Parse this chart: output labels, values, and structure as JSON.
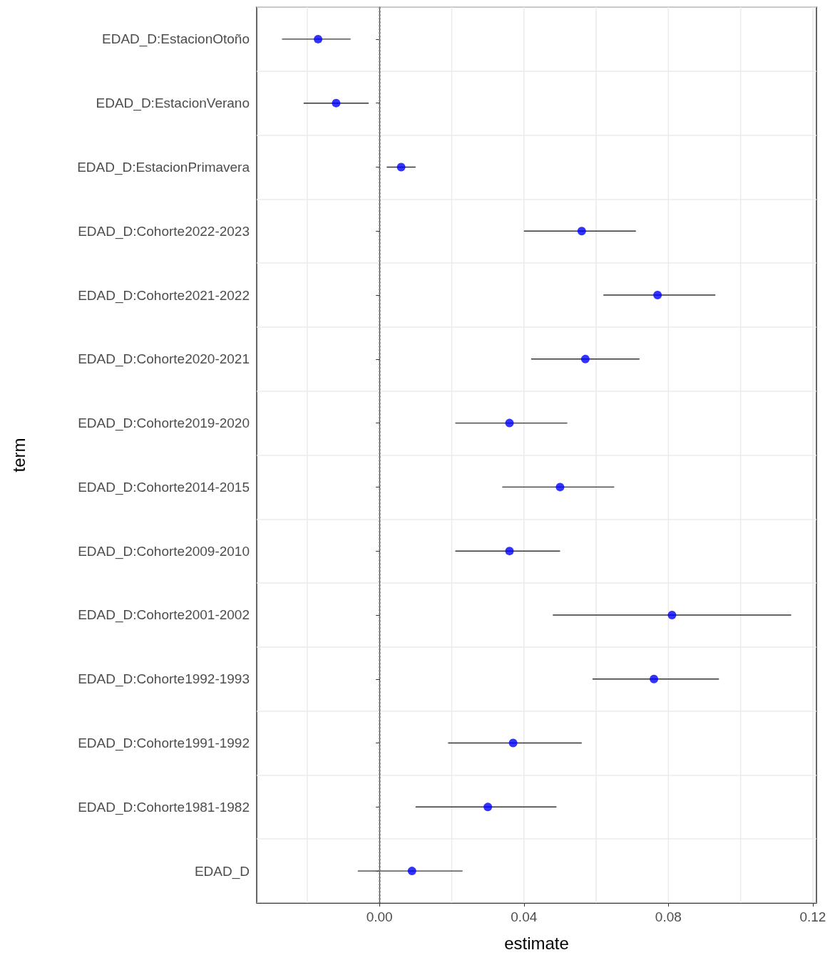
{
  "chart_data": {
    "type": "scatter",
    "orientation": "horizontal",
    "xlabel": "estimate",
    "ylabel": "term",
    "categories": [
      "EDAD_D:EstacionOtoño",
      "EDAD_D:EstacionVerano",
      "EDAD_D:EstacionPrimavera",
      "EDAD_D:Cohorte2022-2023",
      "EDAD_D:Cohorte2021-2022",
      "EDAD_D:Cohorte2020-2021",
      "EDAD_D:Cohorte2019-2020",
      "EDAD_D:Cohorte2014-2015",
      "EDAD_D:Cohorte2009-2010",
      "EDAD_D:Cohorte2001-2002",
      "EDAD_D:Cohorte1992-1993",
      "EDAD_D:Cohorte1991-1992",
      "EDAD_D:Cohorte1981-1982",
      "EDAD_D"
    ],
    "values": [
      -0.017,
      -0.012,
      0.006,
      0.056,
      0.077,
      0.057,
      0.036,
      0.05,
      0.036,
      0.081,
      0.076,
      0.037,
      0.03,
      0.009
    ],
    "errors": [
      [
        -0.027,
        -0.008
      ],
      [
        -0.021,
        -0.003
      ],
      [
        0.002,
        0.01
      ],
      [
        0.04,
        0.071
      ],
      [
        0.062,
        0.093
      ],
      [
        0.042,
        0.072
      ],
      [
        0.021,
        0.052
      ],
      [
        0.034,
        0.065
      ],
      [
        0.021,
        0.05
      ],
      [
        0.048,
        0.114
      ],
      [
        0.059,
        0.094
      ],
      [
        0.019,
        0.056
      ],
      [
        0.01,
        0.049
      ],
      [
        -0.006,
        0.023
      ]
    ],
    "color": "#0000ff",
    "marker": "circle",
    "xlim": [
      -0.034,
      0.121
    ],
    "xticks": [
      {
        "value": -0.02,
        "label": null
      },
      {
        "value": 0,
        "label": "0.00"
      },
      {
        "value": 0.02,
        "label": null
      },
      {
        "value": 0.04,
        "label": "0.04"
      },
      {
        "value": 0.06,
        "label": null
      },
      {
        "value": 0.08,
        "label": "0.08"
      },
      {
        "value": 0.1,
        "label": null
      },
      {
        "value": 0.12,
        "label": "0.12"
      }
    ],
    "ref_lines": [
      {
        "axis": "x",
        "value": 0,
        "color": "#808080",
        "line_style": "dotted"
      }
    ],
    "grid": true
  }
}
